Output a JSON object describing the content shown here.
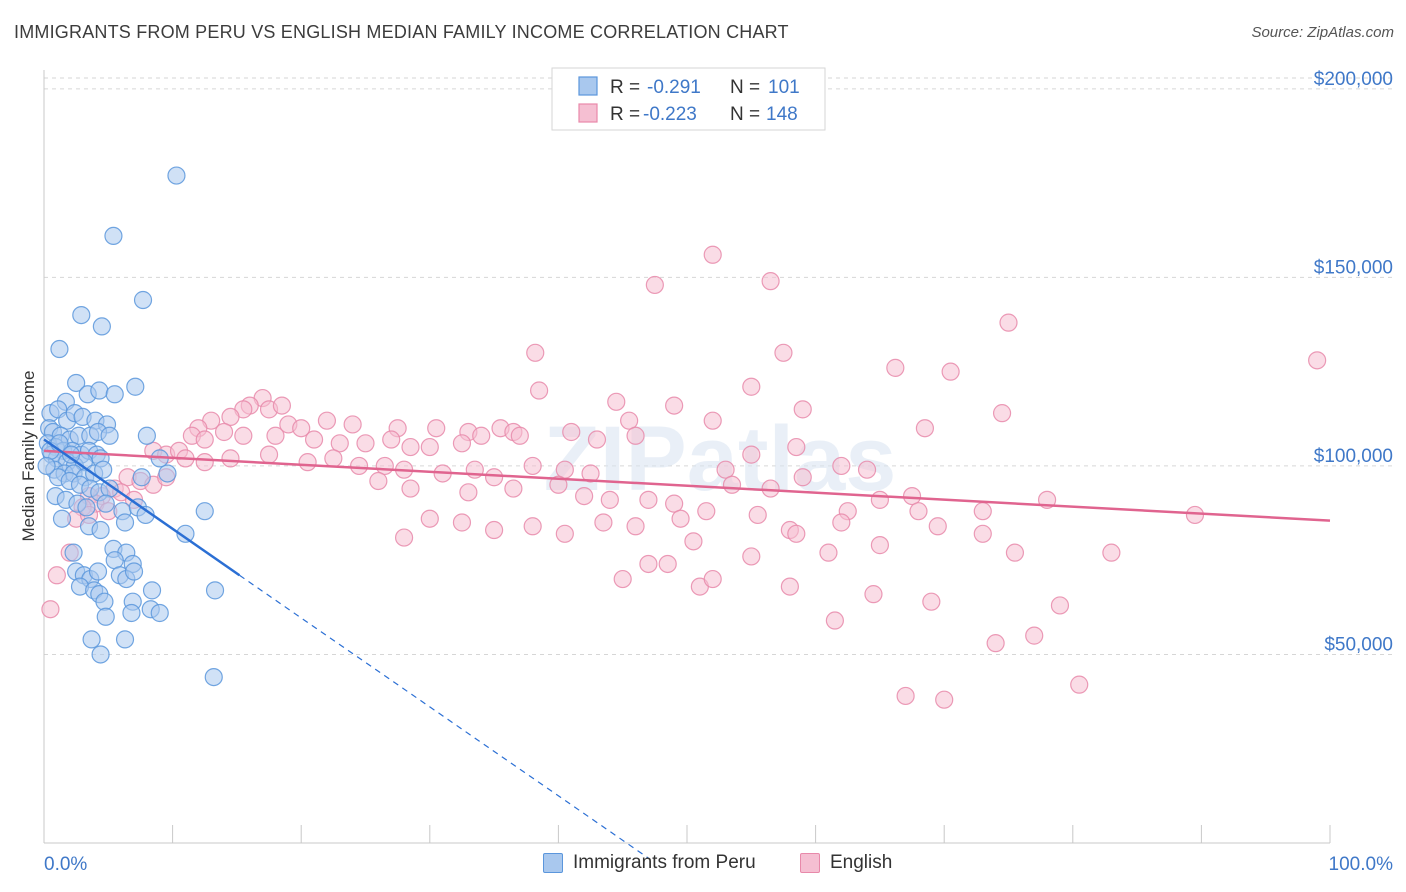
{
  "title": "IMMIGRANTS FROM PERU VS ENGLISH MEDIAN FAMILY INCOME CORRELATION CHART",
  "source": "Source: ZipAtlas.com",
  "watermark": "ZIPatlas",
  "colors": {
    "blue": "#5b96dc",
    "blue_fill": "#a9c8ee",
    "blue_line": "#2b6fd4",
    "pink": "#e889aa",
    "pink_fill": "#f5bfd2",
    "pink_line": "#e0648f",
    "grid": "#d6d6d6",
    "tick_text": "#3f78c8"
  },
  "legend": {
    "rows": [
      {
        "r_label": "R = ",
        "r_value": "-0.291",
        "n_label": "N = ",
        "n_value": "101",
        "series": "blue"
      },
      {
        "r_label": "R = ",
        "r_value": "-0.223",
        "n_label": "N = ",
        "n_value": "148",
        "series": "pink"
      }
    ]
  },
  "bottom_legend": {
    "blue": "Immigrants from Peru",
    "pink": "English"
  },
  "chart_data": {
    "type": "scatter",
    "title": "IMMIGRANTS FROM PERU VS ENGLISH MEDIAN FAMILY INCOME CORRELATION CHART",
    "xlabel": "",
    "ylabel": "Median Family Income",
    "xlim": [
      0,
      100
    ],
    "ylim": [
      0,
      205000
    ],
    "x_tick_labels": [
      "0.0%",
      "100.0%"
    ],
    "y_ticks": [
      50000,
      100000,
      150000,
      200000
    ],
    "y_tick_labels": [
      "$50,000",
      "$100,000",
      "$150,000",
      "$200,000"
    ],
    "grid": true,
    "series": [
      {
        "name": "Immigrants from Peru",
        "color": "blue",
        "R": -0.291,
        "N": 101,
        "trend": {
          "x0": 0,
          "y0": 107000,
          "x1": 15.2,
          "y1": 71000,
          "dash_x1": 47,
          "dash_y1": -4000
        },
        "points": [
          [
            10.3,
            177000
          ],
          [
            5.4,
            161000
          ],
          [
            7.7,
            144000
          ],
          [
            2.9,
            140000
          ],
          [
            4.5,
            137000
          ],
          [
            1.2,
            131000
          ],
          [
            7.1,
            121000
          ],
          [
            2.5,
            122000
          ],
          [
            1.7,
            117000
          ],
          [
            3.4,
            119000
          ],
          [
            4.3,
            120000
          ],
          [
            5.5,
            119000
          ],
          [
            0.5,
            114000
          ],
          [
            1.1,
            115000
          ],
          [
            1.8,
            112000
          ],
          [
            2.4,
            114000
          ],
          [
            3.0,
            113000
          ],
          [
            4.0,
            112000
          ],
          [
            4.9,
            111000
          ],
          [
            0.4,
            110000
          ],
          [
            0.7,
            109000
          ],
          [
            1.3,
            108000
          ],
          [
            2.0,
            107000
          ],
          [
            2.7,
            108000
          ],
          [
            3.6,
            108000
          ],
          [
            4.2,
            109000
          ],
          [
            5.1,
            108000
          ],
          [
            8.0,
            108000
          ],
          [
            0.3,
            106000
          ],
          [
            0.9,
            105000
          ],
          [
            1.5,
            104000
          ],
          [
            2.2,
            104000
          ],
          [
            2.9,
            103000
          ],
          [
            3.5,
            104000
          ],
          [
            4.1,
            103000
          ],
          [
            0.6,
            103000
          ],
          [
            1.0,
            102000
          ],
          [
            1.8,
            101000
          ],
          [
            2.4,
            100000
          ],
          [
            3.1,
            101000
          ],
          [
            4.4,
            102000
          ],
          [
            0.8,
            99000
          ],
          [
            1.6,
            98000
          ],
          [
            2.3,
            98000
          ],
          [
            3.2,
            97000
          ],
          [
            3.9,
            98000
          ],
          [
            4.6,
            99000
          ],
          [
            1.1,
            97000
          ],
          [
            2.0,
            96000
          ],
          [
            2.8,
            95000
          ],
          [
            3.6,
            94000
          ],
          [
            4.3,
            93000
          ],
          [
            5.1,
            94000
          ],
          [
            0.9,
            92000
          ],
          [
            1.7,
            91000
          ],
          [
            2.6,
            90000
          ],
          [
            3.3,
            89000
          ],
          [
            4.8,
            90000
          ],
          [
            6.1,
            88000
          ],
          [
            7.3,
            89000
          ],
          [
            7.9,
            87000
          ],
          [
            9.6,
            98000
          ],
          [
            9.0,
            102000
          ],
          [
            12.5,
            88000
          ],
          [
            1.4,
            86000
          ],
          [
            3.5,
            84000
          ],
          [
            4.4,
            83000
          ],
          [
            6.3,
            85000
          ],
          [
            11.0,
            82000
          ],
          [
            2.3,
            77000
          ],
          [
            5.4,
            78000
          ],
          [
            6.4,
            77000
          ],
          [
            5.5,
            75000
          ],
          [
            6.9,
            74000
          ],
          [
            2.5,
            72000
          ],
          [
            3.1,
            71000
          ],
          [
            3.6,
            70000
          ],
          [
            4.2,
            72000
          ],
          [
            5.9,
            71000
          ],
          [
            6.4,
            70000
          ],
          [
            7.0,
            72000
          ],
          [
            2.8,
            68000
          ],
          [
            3.9,
            67000
          ],
          [
            4.3,
            66000
          ],
          [
            8.4,
            67000
          ],
          [
            13.3,
            67000
          ],
          [
            4.7,
            64000
          ],
          [
            6.9,
            64000
          ],
          [
            8.3,
            62000
          ],
          [
            6.8,
            61000
          ],
          [
            9.0,
            61000
          ],
          [
            4.8,
            60000
          ],
          [
            3.7,
            54000
          ],
          [
            6.3,
            54000
          ],
          [
            4.4,
            50000
          ],
          [
            13.2,
            44000
          ],
          [
            0.5,
            104000
          ],
          [
            1.2,
            106000
          ],
          [
            2.1,
            103000
          ],
          [
            0.2,
            100000
          ],
          [
            7.6,
            97000
          ]
        ]
      },
      {
        "name": "English",
        "color": "pink",
        "R": -0.223,
        "N": 148,
        "trend": {
          "x0": 0,
          "y0": 104000,
          "x1": 100,
          "y1": 85500
        },
        "points": [
          [
            52.0,
            156000
          ],
          [
            56.5,
            149000
          ],
          [
            47.5,
            148000
          ],
          [
            75.0,
            138000
          ],
          [
            99.0,
            128000
          ],
          [
            38.2,
            130000
          ],
          [
            57.5,
            130000
          ],
          [
            66.2,
            126000
          ],
          [
            70.5,
            125000
          ],
          [
            38.5,
            120000
          ],
          [
            44.5,
            117000
          ],
          [
            49.0,
            116000
          ],
          [
            55.0,
            121000
          ],
          [
            59.0,
            115000
          ],
          [
            74.5,
            114000
          ],
          [
            17.0,
            118000
          ],
          [
            16.0,
            116000
          ],
          [
            17.5,
            115000
          ],
          [
            18.5,
            116000
          ],
          [
            15.5,
            115000
          ],
          [
            14.5,
            113000
          ],
          [
            13.0,
            112000
          ],
          [
            12.0,
            110000
          ],
          [
            19.0,
            111000
          ],
          [
            20.0,
            110000
          ],
          [
            22.0,
            112000
          ],
          [
            24.0,
            111000
          ],
          [
            27.5,
            110000
          ],
          [
            30.5,
            110000
          ],
          [
            33.0,
            109000
          ],
          [
            35.5,
            110000
          ],
          [
            36.5,
            109000
          ],
          [
            45.5,
            112000
          ],
          [
            52.0,
            112000
          ],
          [
            11.5,
            108000
          ],
          [
            12.5,
            107000
          ],
          [
            14.0,
            109000
          ],
          [
            15.5,
            108000
          ],
          [
            18.0,
            108000
          ],
          [
            21.0,
            107000
          ],
          [
            23.0,
            106000
          ],
          [
            25.0,
            106000
          ],
          [
            27.0,
            107000
          ],
          [
            28.5,
            105000
          ],
          [
            30.0,
            105000
          ],
          [
            32.5,
            106000
          ],
          [
            34.0,
            108000
          ],
          [
            37.0,
            108000
          ],
          [
            41.0,
            109000
          ],
          [
            43.0,
            107000
          ],
          [
            46.0,
            108000
          ],
          [
            8.5,
            104000
          ],
          [
            9.5,
            103000
          ],
          [
            10.5,
            104000
          ],
          [
            11.0,
            102000
          ],
          [
            12.5,
            101000
          ],
          [
            14.5,
            102000
          ],
          [
            17.5,
            103000
          ],
          [
            20.5,
            101000
          ],
          [
            22.5,
            102000
          ],
          [
            24.5,
            100000
          ],
          [
            26.5,
            100000
          ],
          [
            28.0,
            99000
          ],
          [
            31.0,
            98000
          ],
          [
            33.5,
            99000
          ],
          [
            35.0,
            97000
          ],
          [
            38.0,
            100000
          ],
          [
            40.5,
            99000
          ],
          [
            42.5,
            98000
          ],
          [
            53.0,
            99000
          ],
          [
            55.0,
            103000
          ],
          [
            58.5,
            105000
          ],
          [
            62.0,
            100000
          ],
          [
            64.0,
            99000
          ],
          [
            68.5,
            110000
          ],
          [
            6.5,
            97000
          ],
          [
            7.5,
            96000
          ],
          [
            8.5,
            95000
          ],
          [
            9.5,
            97000
          ],
          [
            5.5,
            94000
          ],
          [
            6.0,
            93000
          ],
          [
            4.5,
            92000
          ],
          [
            7.0,
            91000
          ],
          [
            3.5,
            92000
          ],
          [
            4.0,
            90000
          ],
          [
            3.0,
            89000
          ],
          [
            5.0,
            88000
          ],
          [
            26.0,
            96000
          ],
          [
            28.5,
            94000
          ],
          [
            33.0,
            93000
          ],
          [
            36.5,
            94000
          ],
          [
            40.0,
            95000
          ],
          [
            42.0,
            92000
          ],
          [
            44.0,
            91000
          ],
          [
            47.0,
            91000
          ],
          [
            49.0,
            90000
          ],
          [
            51.5,
            88000
          ],
          [
            53.5,
            95000
          ],
          [
            56.5,
            94000
          ],
          [
            59.0,
            97000
          ],
          [
            62.5,
            88000
          ],
          [
            65.0,
            91000
          ],
          [
            67.5,
            92000
          ],
          [
            68.0,
            88000
          ],
          [
            73.0,
            88000
          ],
          [
            78.0,
            91000
          ],
          [
            89.5,
            87000
          ],
          [
            2.5,
            86000
          ],
          [
            3.5,
            87000
          ],
          [
            30.0,
            86000
          ],
          [
            32.5,
            85000
          ],
          [
            35.0,
            83000
          ],
          [
            38.0,
            84000
          ],
          [
            40.5,
            82000
          ],
          [
            43.5,
            85000
          ],
          [
            46.0,
            84000
          ],
          [
            49.5,
            86000
          ],
          [
            55.5,
            87000
          ],
          [
            58.0,
            83000
          ],
          [
            62.0,
            85000
          ],
          [
            69.5,
            84000
          ],
          [
            73.0,
            82000
          ],
          [
            2.0,
            77000
          ],
          [
            28.0,
            81000
          ],
          [
            50.5,
            80000
          ],
          [
            55.0,
            76000
          ],
          [
            58.5,
            82000
          ],
          [
            61.0,
            77000
          ],
          [
            65.0,
            79000
          ],
          [
            75.5,
            77000
          ],
          [
            83.0,
            77000
          ],
          [
            1.0,
            71000
          ],
          [
            45.0,
            70000
          ],
          [
            47.0,
            74000
          ],
          [
            48.5,
            74000
          ],
          [
            51.0,
            68000
          ],
          [
            52.0,
            70000
          ],
          [
            58.0,
            68000
          ],
          [
            64.5,
            66000
          ],
          [
            69.0,
            64000
          ],
          [
            79.0,
            63000
          ],
          [
            0.5,
            62000
          ],
          [
            61.5,
            59000
          ],
          [
            77.0,
            55000
          ],
          [
            74.0,
            53000
          ],
          [
            80.5,
            42000
          ],
          [
            67.0,
            39000
          ],
          [
            70.0,
            38000
          ]
        ]
      }
    ]
  }
}
